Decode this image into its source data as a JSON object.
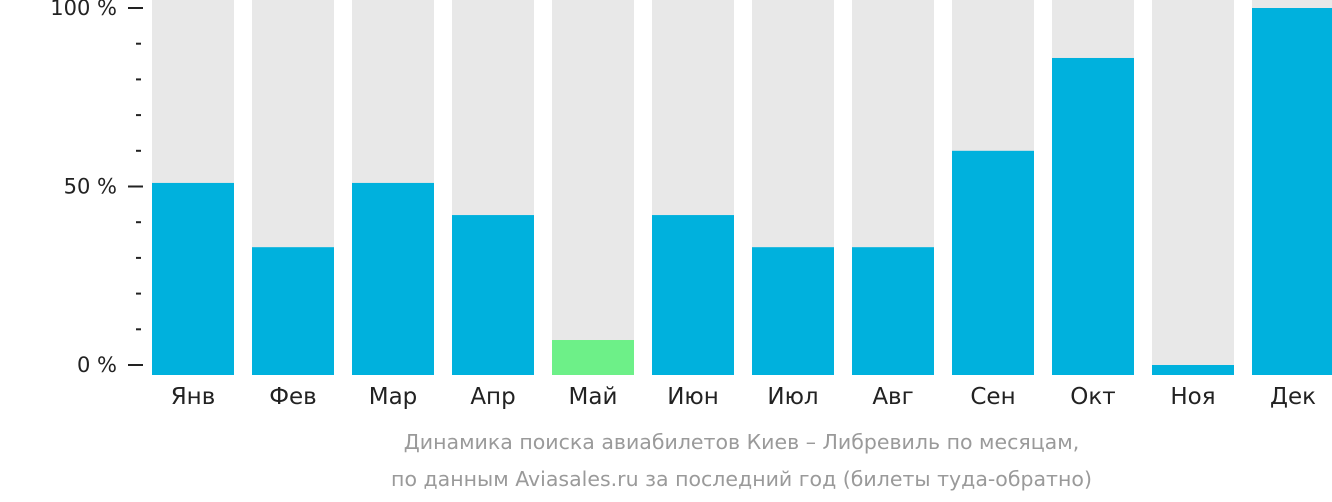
{
  "chart_data": {
    "type": "bar",
    "categories": [
      "Янв",
      "Фев",
      "Мар",
      "Апр",
      "Май",
      "Июн",
      "Июл",
      "Авг",
      "Сен",
      "Окт",
      "Ноя",
      "Дек"
    ],
    "values": [
      51,
      33,
      51,
      42,
      7,
      42,
      33,
      33,
      60,
      86,
      0,
      100
    ],
    "highlight_index": 4,
    "ylim": [
      0,
      100
    ],
    "yticks": [
      {
        "value": 0,
        "label": "0 %"
      },
      {
        "value": 50,
        "label": "50 %"
      },
      {
        "value": 100,
        "label": "100 %"
      }
    ],
    "minor_tick_step": 10,
    "colors": {
      "bar": "#00b1dd",
      "highlight": "#6df088",
      "track": "#e8e8e8",
      "axis": "#222222"
    },
    "caption_line1": "Динамика поиска авиабилетов Киев – Либревиль по месяцам,",
    "caption_line2": "по данным Aviasales.ru за последний год (билеты туда-обратно)"
  }
}
